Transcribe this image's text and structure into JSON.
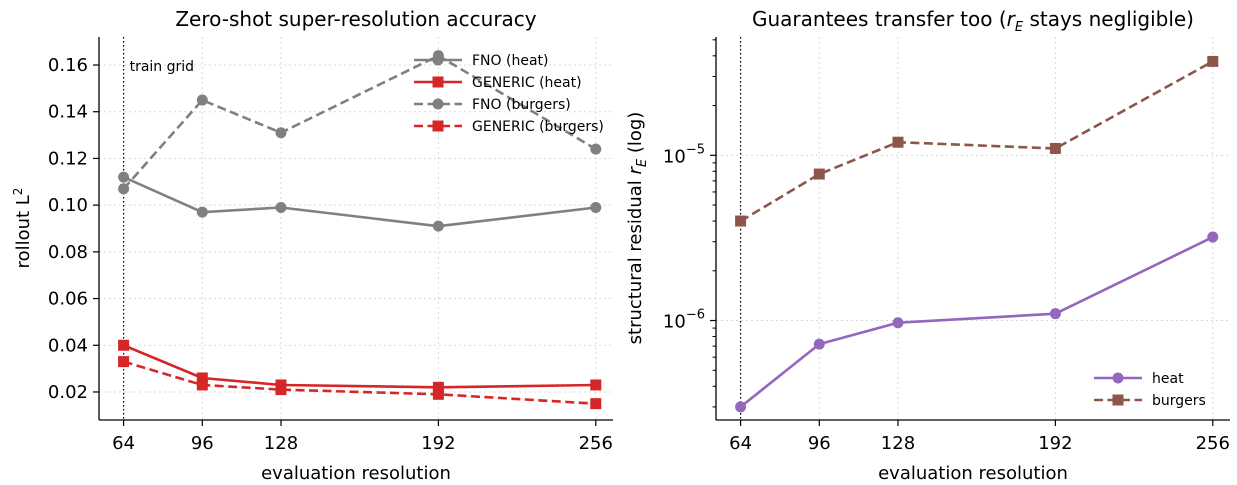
{
  "chart_data": [
    {
      "type": "line",
      "title": "Zero-shot super-resolution accuracy",
      "xlabel": "evaluation resolution",
      "ylabel": "rollout L",
      "ylabel_sup": "2",
      "x": [
        64,
        96,
        128,
        192,
        256
      ],
      "xticks": [
        "64",
        "96",
        "128",
        "192",
        "256"
      ],
      "xlim": [
        54,
        263
      ],
      "ylim": [
        0.008,
        0.172
      ],
      "yticks": [
        "0.02",
        "0.04",
        "0.06",
        "0.08",
        "0.10",
        "0.12",
        "0.14",
        "0.16"
      ],
      "ytick_values": [
        0.02,
        0.04,
        0.06,
        0.08,
        0.1,
        0.12,
        0.14,
        0.16
      ],
      "grid": true,
      "legend_position": "top-right",
      "annotation": {
        "text": "train grid",
        "x": 64
      },
      "series": [
        {
          "name": "FNO (heat)",
          "values": [
            0.112,
            0.097,
            0.099,
            0.091,
            0.099
          ],
          "color": "#808080",
          "marker": "circle",
          "dash": "solid"
        },
        {
          "name": "GENERIC (heat)",
          "values": [
            0.04,
            0.026,
            0.023,
            0.022,
            0.023
          ],
          "color": "#d62728",
          "marker": "square",
          "dash": "solid"
        },
        {
          "name": "FNO (burgers)",
          "values": [
            0.107,
            0.145,
            0.131,
            0.164,
            0.124
          ],
          "color": "#808080",
          "marker": "circle",
          "dash": "dashed"
        },
        {
          "name": "GENERIC (burgers)",
          "values": [
            0.033,
            0.023,
            0.021,
            0.019,
            0.015
          ],
          "color": "#d62728",
          "marker": "square",
          "dash": "dashed"
        }
      ]
    },
    {
      "type": "line",
      "title_pre": "Guarantees transfer too (",
      "title_var": "r",
      "title_sub": "E",
      "title_post": " stays negligible)",
      "xlabel": "evaluation resolution",
      "ylabel_pre": "structural residual ",
      "ylabel_var": "r",
      "ylabel_sub": "E",
      "ylabel_post": " (log)",
      "x": [
        64,
        96,
        128,
        192,
        256
      ],
      "xticks": [
        "64",
        "96",
        "128",
        "192",
        "256"
      ],
      "xlim": [
        54,
        263
      ],
      "yscale": "log",
      "ylim": [
        2.5e-07,
        5.2e-05
      ],
      "ytick_values": [
        1e-06,
        1e-05
      ],
      "yticks": [
        {
          "base": "10",
          "exp": "−6"
        },
        {
          "base": "10",
          "exp": "−5"
        }
      ],
      "grid": true,
      "legend_position": "bottom-right",
      "series": [
        {
          "name": "heat",
          "values": [
            3e-07,
            7.2e-07,
            9.7e-07,
            1.1e-06,
            3.2e-06
          ],
          "color": "#9467bd",
          "marker": "circle",
          "dash": "solid"
        },
        {
          "name": "burgers",
          "values": [
            4e-06,
            7.7e-06,
            1.2e-05,
            1.1e-05,
            3.7e-05
          ],
          "color": "#8c564b",
          "marker": "square",
          "dash": "dashed"
        }
      ]
    }
  ]
}
